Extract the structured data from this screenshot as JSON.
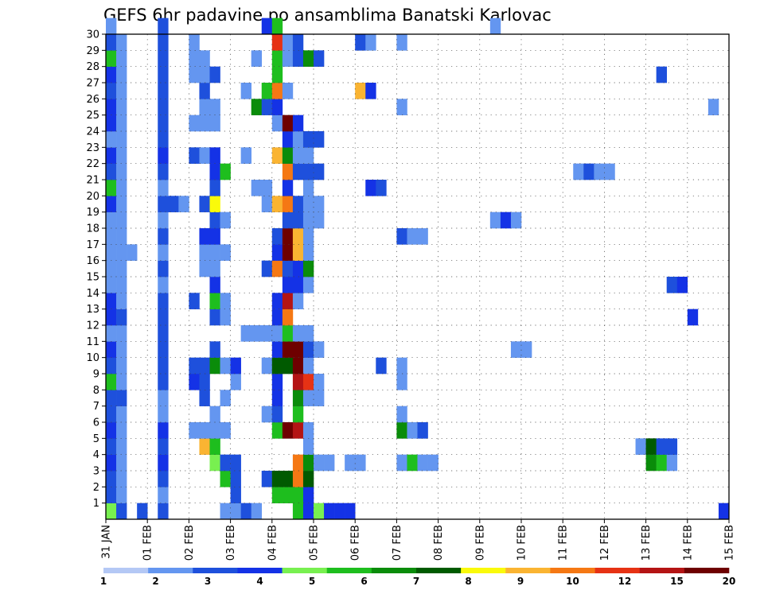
{
  "chart_data": {
    "type": "heatmap",
    "title": "GEFS 6hr padavine po ansamblima Banatski Karlovac",
    "xlabel": "",
    "ylabel": "",
    "x_tick_labels": [
      "31 JAN",
      "01 FEB",
      "02 FEB",
      "03 FEB",
      "04 FEB",
      "05 FEB",
      "06 FEB",
      "07 FEB",
      "08 FEB",
      "09 FEB",
      "10 FEB",
      "11 FEB",
      "12 FEB",
      "13 FEB",
      "14 FEB",
      "15 FEB"
    ],
    "y_tick_labels": [
      "1",
      "2",
      "3",
      "4",
      "5",
      "6",
      "7",
      "8",
      "9",
      "10",
      "11",
      "12",
      "13",
      "14",
      "15",
      "16",
      "17",
      "18",
      "19",
      "20",
      "21",
      "22",
      "23",
      "24",
      "25",
      "26",
      "27",
      "28",
      "29",
      "30"
    ],
    "ylim": [
      0,
      30
    ],
    "x_steps": 60,
    "steps_per_day": 4,
    "grid": true,
    "colorbar": {
      "labels": [
        "1",
        "2",
        "3",
        "4",
        "5",
        "6",
        "7",
        "8",
        "9",
        "10",
        "12",
        "15",
        "20"
      ],
      "colors": [
        "#b4c8f5",
        "#6496f0",
        "#1e50dc",
        "#1432e6",
        "#78f050",
        "#1ebe1e",
        "#0a8c0a",
        "#005a00",
        "#fafa0a",
        "#fab432",
        "#f57814",
        "#e63214",
        "#b41414",
        "#6e0000"
      ]
    },
    "cells": [
      [
        0,
        0,
        4
      ],
      [
        1,
        0,
        2
      ],
      [
        3,
        0,
        2
      ],
      [
        5,
        0,
        2
      ],
      [
        11,
        0,
        1
      ],
      [
        12,
        0,
        1
      ],
      [
        13,
        0,
        2
      ],
      [
        14,
        0,
        1
      ],
      [
        18,
        0,
        5
      ],
      [
        19,
        0,
        3
      ],
      [
        20,
        0,
        4
      ],
      [
        21,
        0,
        3
      ],
      [
        22,
        0,
        3
      ],
      [
        23,
        0,
        3
      ],
      [
        59,
        0,
        3
      ],
      [
        0,
        1,
        2
      ],
      [
        1,
        1,
        1
      ],
      [
        5,
        1,
        1
      ],
      [
        12,
        1,
        2
      ],
      [
        16,
        1,
        5
      ],
      [
        17,
        1,
        5
      ],
      [
        18,
        1,
        5
      ],
      [
        19,
        1,
        3
      ],
      [
        0,
        2,
        2
      ],
      [
        1,
        2,
        1
      ],
      [
        5,
        2,
        2
      ],
      [
        11,
        2,
        5
      ],
      [
        12,
        2,
        2
      ],
      [
        15,
        2,
        2
      ],
      [
        16,
        2,
        7
      ],
      [
        17,
        2,
        7
      ],
      [
        18,
        2,
        10
      ],
      [
        19,
        2,
        7
      ],
      [
        0,
        3,
        3
      ],
      [
        1,
        3,
        1
      ],
      [
        5,
        3,
        3
      ],
      [
        10,
        3,
        4
      ],
      [
        11,
        3,
        2
      ],
      [
        12,
        3,
        2
      ],
      [
        18,
        3,
        10
      ],
      [
        19,
        3,
        6
      ],
      [
        20,
        3,
        1
      ],
      [
        21,
        3,
        1
      ],
      [
        23,
        3,
        1
      ],
      [
        24,
        3,
        1
      ],
      [
        28,
        3,
        1
      ],
      [
        29,
        3,
        5
      ],
      [
        30,
        3,
        1
      ],
      [
        31,
        3,
        1
      ],
      [
        52,
        3,
        6
      ],
      [
        53,
        3,
        5
      ],
      [
        54,
        3,
        1
      ],
      [
        0,
        4,
        2
      ],
      [
        1,
        4,
        1
      ],
      [
        5,
        4,
        2
      ],
      [
        9,
        4,
        9
      ],
      [
        10,
        4,
        5
      ],
      [
        19,
        4,
        1
      ],
      [
        51,
        4,
        1
      ],
      [
        52,
        4,
        7
      ],
      [
        53,
        4,
        2
      ],
      [
        54,
        4,
        2
      ],
      [
        0,
        5,
        3
      ],
      [
        1,
        5,
        1
      ],
      [
        5,
        5,
        3
      ],
      [
        8,
        5,
        1
      ],
      [
        9,
        5,
        1
      ],
      [
        10,
        5,
        1
      ],
      [
        11,
        5,
        1
      ],
      [
        16,
        5,
        5
      ],
      [
        17,
        5,
        13
      ],
      [
        18,
        5,
        12
      ],
      [
        19,
        5,
        1
      ],
      [
        28,
        5,
        6
      ],
      [
        29,
        5,
        1
      ],
      [
        30,
        5,
        2
      ],
      [
        0,
        6,
        2
      ],
      [
        1,
        6,
        1
      ],
      [
        5,
        6,
        1
      ],
      [
        10,
        6,
        1
      ],
      [
        15,
        6,
        1
      ],
      [
        16,
        6,
        2
      ],
      [
        18,
        6,
        5
      ],
      [
        28,
        6,
        1
      ],
      [
        0,
        7,
        2
      ],
      [
        1,
        7,
        2
      ],
      [
        5,
        7,
        1
      ],
      [
        9,
        7,
        2
      ],
      [
        11,
        7,
        1
      ],
      [
        16,
        7,
        3
      ],
      [
        18,
        7,
        6
      ],
      [
        19,
        7,
        1
      ],
      [
        20,
        7,
        1
      ],
      [
        0,
        8,
        5
      ],
      [
        1,
        8,
        1
      ],
      [
        5,
        8,
        2
      ],
      [
        8,
        8,
        3
      ],
      [
        9,
        8,
        2
      ],
      [
        12,
        8,
        1
      ],
      [
        16,
        8,
        3
      ],
      [
        18,
        8,
        12
      ],
      [
        19,
        8,
        11
      ],
      [
        20,
        8,
        1
      ],
      [
        28,
        8,
        1
      ],
      [
        0,
        9,
        2
      ],
      [
        1,
        9,
        1
      ],
      [
        5,
        9,
        2
      ],
      [
        8,
        9,
        2
      ],
      [
        9,
        9,
        2
      ],
      [
        10,
        9,
        6
      ],
      [
        11,
        9,
        1
      ],
      [
        12,
        9,
        3
      ],
      [
        15,
        9,
        1
      ],
      [
        16,
        9,
        7
      ],
      [
        17,
        9,
        7
      ],
      [
        18,
        9,
        13
      ],
      [
        19,
        9,
        1
      ],
      [
        26,
        9,
        2
      ],
      [
        28,
        9,
        1
      ],
      [
        0,
        10,
        3
      ],
      [
        1,
        10,
        1
      ],
      [
        5,
        10,
        2
      ],
      [
        10,
        10,
        2
      ],
      [
        16,
        10,
        3
      ],
      [
        17,
        10,
        13
      ],
      [
        18,
        10,
        13
      ],
      [
        19,
        10,
        2
      ],
      [
        20,
        10,
        1
      ],
      [
        39,
        10,
        1
      ],
      [
        40,
        10,
        1
      ],
      [
        0,
        11,
        1
      ],
      [
        1,
        11,
        1
      ],
      [
        5,
        11,
        2
      ],
      [
        13,
        11,
        1
      ],
      [
        14,
        11,
        1
      ],
      [
        15,
        11,
        1
      ],
      [
        16,
        11,
        1
      ],
      [
        17,
        11,
        5
      ],
      [
        18,
        11,
        1
      ],
      [
        19,
        11,
        1
      ],
      [
        0,
        12,
        3
      ],
      [
        1,
        12,
        2
      ],
      [
        5,
        12,
        2
      ],
      [
        10,
        12,
        2
      ],
      [
        11,
        12,
        1
      ],
      [
        16,
        12,
        3
      ],
      [
        17,
        12,
        10
      ],
      [
        56,
        12,
        3
      ],
      [
        0,
        13,
        3
      ],
      [
        1,
        13,
        1
      ],
      [
        5,
        13,
        2
      ],
      [
        8,
        13,
        2
      ],
      [
        10,
        13,
        5
      ],
      [
        11,
        13,
        1
      ],
      [
        16,
        13,
        3
      ],
      [
        17,
        13,
        12
      ],
      [
        18,
        13,
        1
      ],
      [
        0,
        14,
        1
      ],
      [
        1,
        14,
        1
      ],
      [
        5,
        14,
        1
      ],
      [
        10,
        14,
        3
      ],
      [
        17,
        14,
        3
      ],
      [
        18,
        14,
        3
      ],
      [
        19,
        14,
        1
      ],
      [
        54,
        14,
        2
      ],
      [
        55,
        14,
        3
      ],
      [
        0,
        15,
        1
      ],
      [
        1,
        15,
        1
      ],
      [
        5,
        15,
        2
      ],
      [
        9,
        15,
        1
      ],
      [
        10,
        15,
        1
      ],
      [
        15,
        15,
        2
      ],
      [
        16,
        15,
        10
      ],
      [
        17,
        15,
        2
      ],
      [
        18,
        15,
        3
      ],
      [
        19,
        15,
        6
      ],
      [
        0,
        16,
        1
      ],
      [
        1,
        16,
        1
      ],
      [
        2,
        16,
        1
      ],
      [
        5,
        16,
        1
      ],
      [
        9,
        16,
        1
      ],
      [
        10,
        16,
        1
      ],
      [
        11,
        16,
        1
      ],
      [
        16,
        16,
        3
      ],
      [
        17,
        16,
        13
      ],
      [
        18,
        16,
        9
      ],
      [
        19,
        16,
        1
      ],
      [
        0,
        17,
        1
      ],
      [
        1,
        17,
        1
      ],
      [
        5,
        17,
        2
      ],
      [
        9,
        17,
        3
      ],
      [
        10,
        17,
        3
      ],
      [
        16,
        17,
        2
      ],
      [
        17,
        17,
        13
      ],
      [
        18,
        17,
        9
      ],
      [
        19,
        17,
        1
      ],
      [
        28,
        17,
        2
      ],
      [
        29,
        17,
        1
      ],
      [
        30,
        17,
        1
      ],
      [
        0,
        18,
        1
      ],
      [
        1,
        18,
        1
      ],
      [
        5,
        18,
        1
      ],
      [
        10,
        18,
        2
      ],
      [
        11,
        18,
        1
      ],
      [
        17,
        18,
        2
      ],
      [
        18,
        18,
        2
      ],
      [
        19,
        18,
        1
      ],
      [
        20,
        18,
        1
      ],
      [
        37,
        18,
        1
      ],
      [
        38,
        18,
        3
      ],
      [
        39,
        18,
        1
      ],
      [
        0,
        19,
        3
      ],
      [
        1,
        19,
        1
      ],
      [
        5,
        19,
        2
      ],
      [
        6,
        19,
        2
      ],
      [
        7,
        19,
        1
      ],
      [
        9,
        19,
        2
      ],
      [
        10,
        19,
        8
      ],
      [
        15,
        19,
        1
      ],
      [
        16,
        19,
        9
      ],
      [
        17,
        19,
        10
      ],
      [
        18,
        19,
        2
      ],
      [
        19,
        19,
        1
      ],
      [
        20,
        19,
        1
      ],
      [
        0,
        20,
        5
      ],
      [
        1,
        20,
        1
      ],
      [
        5,
        20,
        1
      ],
      [
        10,
        20,
        2
      ],
      [
        14,
        20,
        1
      ],
      [
        15,
        20,
        1
      ],
      [
        17,
        20,
        3
      ],
      [
        19,
        20,
        1
      ],
      [
        25,
        20,
        3
      ],
      [
        26,
        20,
        2
      ],
      [
        0,
        21,
        2
      ],
      [
        1,
        21,
        1
      ],
      [
        5,
        21,
        2
      ],
      [
        10,
        21,
        3
      ],
      [
        11,
        21,
        5
      ],
      [
        17,
        21,
        10
      ],
      [
        18,
        21,
        2
      ],
      [
        19,
        21,
        2
      ],
      [
        20,
        21,
        2
      ],
      [
        45,
        21,
        1
      ],
      [
        46,
        21,
        2
      ],
      [
        47,
        21,
        1
      ],
      [
        48,
        21,
        1
      ],
      [
        0,
        22,
        3
      ],
      [
        1,
        22,
        1
      ],
      [
        5,
        22,
        3
      ],
      [
        8,
        22,
        2
      ],
      [
        9,
        22,
        1
      ],
      [
        10,
        22,
        3
      ],
      [
        13,
        22,
        1
      ],
      [
        16,
        22,
        9
      ],
      [
        17,
        22,
        6
      ],
      [
        18,
        22,
        1
      ],
      [
        19,
        22,
        1
      ],
      [
        0,
        23,
        1
      ],
      [
        1,
        23,
        1
      ],
      [
        5,
        23,
        2
      ],
      [
        17,
        23,
        3
      ],
      [
        18,
        23,
        1
      ],
      [
        19,
        23,
        2
      ],
      [
        20,
        23,
        2
      ],
      [
        0,
        24,
        3
      ],
      [
        1,
        24,
        1
      ],
      [
        5,
        24,
        2
      ],
      [
        8,
        24,
        1
      ],
      [
        9,
        24,
        1
      ],
      [
        10,
        24,
        1
      ],
      [
        16,
        24,
        1
      ],
      [
        17,
        24,
        13
      ],
      [
        18,
        24,
        3
      ],
      [
        0,
        25,
        3
      ],
      [
        1,
        25,
        1
      ],
      [
        5,
        25,
        2
      ],
      [
        9,
        25,
        1
      ],
      [
        10,
        25,
        1
      ],
      [
        14,
        25,
        6
      ],
      [
        15,
        25,
        2
      ],
      [
        16,
        25,
        3
      ],
      [
        28,
        25,
        1
      ],
      [
        58,
        25,
        1
      ],
      [
        0,
        26,
        2
      ],
      [
        1,
        26,
        1
      ],
      [
        5,
        26,
        2
      ],
      [
        9,
        26,
        2
      ],
      [
        13,
        26,
        1
      ],
      [
        15,
        26,
        5
      ],
      [
        16,
        26,
        10
      ],
      [
        17,
        26,
        1
      ],
      [
        24,
        26,
        9
      ],
      [
        25,
        26,
        3
      ],
      [
        0,
        27,
        3
      ],
      [
        1,
        27,
        1
      ],
      [
        5,
        27,
        2
      ],
      [
        8,
        27,
        1
      ],
      [
        9,
        27,
        1
      ],
      [
        10,
        27,
        2
      ],
      [
        16,
        27,
        5
      ],
      [
        53,
        27,
        2
      ],
      [
        0,
        28,
        5
      ],
      [
        1,
        28,
        1
      ],
      [
        5,
        28,
        2
      ],
      [
        8,
        28,
        1
      ],
      [
        9,
        28,
        1
      ],
      [
        14,
        28,
        1
      ],
      [
        16,
        28,
        5
      ],
      [
        17,
        28,
        1
      ],
      [
        18,
        28,
        2
      ],
      [
        19,
        28,
        6
      ],
      [
        20,
        28,
        2
      ],
      [
        0,
        29,
        2
      ],
      [
        1,
        29,
        1
      ],
      [
        5,
        29,
        2
      ],
      [
        8,
        29,
        1
      ],
      [
        16,
        29,
        11
      ],
      [
        17,
        29,
        1
      ],
      [
        18,
        29,
        2
      ],
      [
        24,
        29,
        2
      ],
      [
        25,
        29,
        1
      ],
      [
        28,
        29,
        1
      ],
      [
        0,
        30,
        1
      ],
      [
        5,
        30,
        2
      ],
      [
        15,
        30,
        3
      ],
      [
        16,
        30,
        5
      ],
      [
        37,
        30,
        1
      ]
    ]
  }
}
